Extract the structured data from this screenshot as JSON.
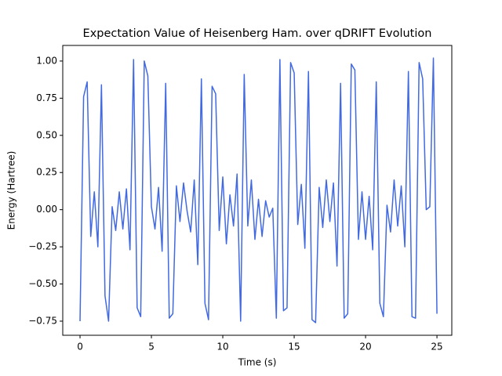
{
  "chart_data": {
    "type": "line",
    "title": "Expectation Value of Heisenberg Ham. over qDRIFT Evolution",
    "x_label": "Time (s)",
    "y_label": "Energy (Hartree)",
    "x": [
      0,
      0.25,
      0.5,
      0.75,
      1,
      1.25,
      1.5,
      1.75,
      2,
      2.25,
      2.5,
      2.75,
      3,
      3.25,
      3.5,
      3.75,
      4,
      4.25,
      4.5,
      4.75,
      5,
      5.25,
      5.5,
      5.75,
      6,
      6.25,
      6.5,
      6.75,
      7,
      7.25,
      7.5,
      7.75,
      8,
      8.25,
      8.5,
      8.75,
      9,
      9.25,
      9.5,
      9.75,
      10,
      10.25,
      10.5,
      10.75,
      11,
      11.25,
      11.5,
      11.75,
      12,
      12.25,
      12.5,
      12.75,
      13,
      13.25,
      13.5,
      13.75,
      14,
      14.25,
      14.5,
      14.75,
      15,
      15.25,
      15.5,
      15.75,
      16,
      16.25,
      16.5,
      16.75,
      17,
      17.25,
      17.5,
      17.75,
      18,
      18.25,
      18.5,
      18.75,
      19,
      19.25,
      19.5,
      19.75,
      20,
      20.25,
      20.5,
      20.75,
      21,
      21.25,
      21.5,
      21.75,
      22,
      22.25,
      22.5,
      22.75,
      23,
      23.25,
      23.5,
      23.75,
      24,
      24.25,
      24.5,
      24.75,
      25
    ],
    "series": [
      {
        "color": "#4169e1",
        "values": [
          -0.75,
          0.76,
          0.86,
          -0.18,
          0.12,
          -0.25,
          0.84,
          -0.58,
          -0.75,
          0.02,
          -0.14,
          0.12,
          -0.13,
          0.14,
          -0.27,
          1.01,
          -0.66,
          -0.72,
          1.0,
          0.9,
          0.02,
          -0.13,
          0.15,
          -0.28,
          0.85,
          -0.73,
          -0.7,
          0.16,
          -0.08,
          0.18,
          -0.01,
          -0.15,
          0.2,
          -0.37,
          0.88,
          -0.63,
          -0.74,
          0.83,
          0.78,
          -0.14,
          0.22,
          -0.23,
          0.1,
          -0.11,
          0.24,
          -0.75,
          0.91,
          -0.11,
          0.2,
          -0.2,
          0.07,
          -0.18,
          0.06,
          -0.05,
          0.01,
          -0.73,
          1.01,
          -0.68,
          -0.66,
          0.99,
          0.92,
          -0.1,
          0.17,
          -0.26,
          0.93,
          -0.74,
          -0.76,
          0.15,
          -0.12,
          0.2,
          -0.08,
          0.18,
          -0.38,
          0.85,
          -0.73,
          -0.7,
          0.98,
          0.94,
          -0.2,
          0.12,
          -0.2,
          0.09,
          -0.27,
          0.86,
          -0.63,
          -0.72,
          0.03,
          -0.15,
          0.2,
          -0.11,
          0.16,
          -0.25,
          0.93,
          -0.72,
          -0.73,
          0.99,
          0.88,
          0.0,
          0.02,
          1.02,
          -0.7
        ]
      }
    ],
    "xlim": [
      -1.21,
      26.04
    ],
    "ylim": [
      -0.845,
      1.105
    ],
    "xticks": [
      0,
      5,
      10,
      15,
      20,
      25
    ],
    "yticks": [
      {
        "value": -0.75,
        "label": "−0.75"
      },
      {
        "value": -0.5,
        "label": "−0.50"
      },
      {
        "value": -0.25,
        "label": "−0.25"
      },
      {
        "value": 0,
        "label": "0.00"
      },
      {
        "value": 0.25,
        "label": "0.25"
      },
      {
        "value": 0.5,
        "label": "0.50"
      },
      {
        "value": 0.75,
        "label": "0.75"
      },
      {
        "value": 1,
        "label": "1.00"
      }
    ],
    "grid": false
  }
}
